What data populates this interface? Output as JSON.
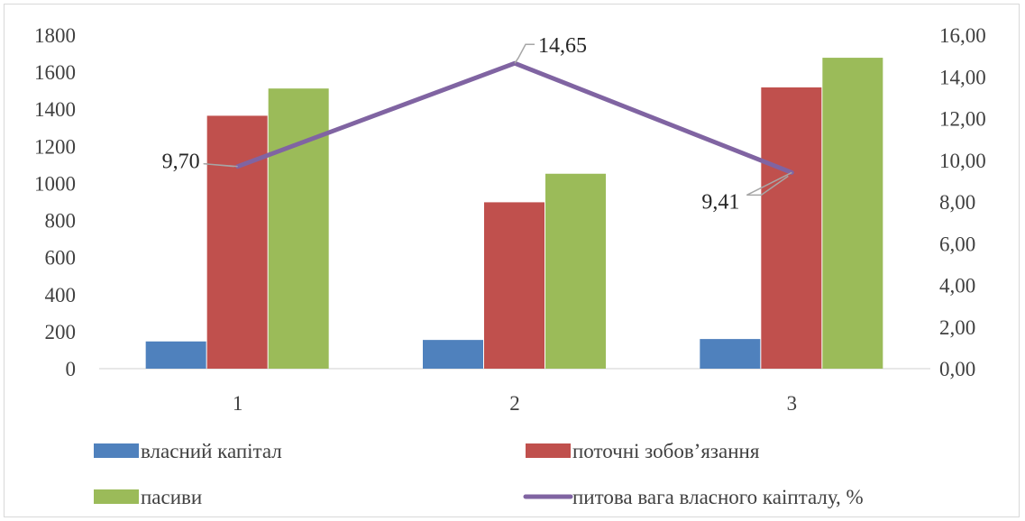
{
  "chart_data": {
    "type": "bar",
    "categories": [
      "1",
      "2",
      "3"
    ],
    "series": [
      {
        "name": "власний капітал",
        "type": "bar",
        "axis": "left",
        "color": "#4f81bd",
        "values": [
          147,
          155,
          160
        ]
      },
      {
        "name": "поточні зобов’язання",
        "type": "bar",
        "axis": "left",
        "color": "#c0504d",
        "values": [
          1365,
          898,
          1518
        ]
      },
      {
        "name": "пасиви",
        "type": "bar",
        "axis": "left",
        "color": "#9bbb59",
        "values": [
          1512,
          1052,
          1678
        ]
      },
      {
        "name": "питова вага власного каіпталу, %",
        "type": "line",
        "axis": "right",
        "color": "#8064a2",
        "values": [
          9.7,
          14.65,
          9.41
        ]
      }
    ],
    "data_labels": [
      "9,70",
      "14,65",
      "9,41"
    ],
    "y_left": {
      "min": 0,
      "max": 1800,
      "step": 200,
      "ticks": [
        "0",
        "200",
        "400",
        "600",
        "800",
        "1000",
        "1200",
        "1400",
        "1600",
        "1800"
      ]
    },
    "y_right": {
      "min": 0,
      "max": 16,
      "step": 2,
      "ticks": [
        "0,00",
        "2,00",
        "4,00",
        "6,00",
        "8,00",
        "10,00",
        "12,00",
        "14,00",
        "16,00"
      ]
    },
    "grid": false,
    "legend": "bottom",
    "title": "",
    "xlabel": "",
    "ylabel": ""
  }
}
